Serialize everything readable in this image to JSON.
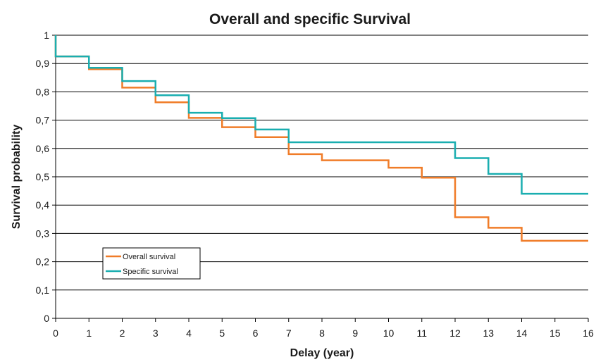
{
  "chart_data": {
    "type": "line",
    "step": true,
    "title": "Overall and specific Survival",
    "xlabel": "Delay (year)",
    "ylabel": "Survival probability",
    "xlim": [
      0,
      16
    ],
    "ylim": [
      0,
      1
    ],
    "x_ticks": [
      "0",
      "1",
      "2",
      "3",
      "4",
      "5",
      "6",
      "7",
      "8",
      "9",
      "10",
      "11",
      "12",
      "13",
      "14",
      "15",
      "16"
    ],
    "y_ticks": [
      "0",
      "0,1",
      "0,2",
      "0,3",
      "0,4",
      "0,5",
      "0,6",
      "0,7",
      "0,8",
      "0,9",
      "1"
    ],
    "grid": "horizontal",
    "legend_position": "lower-left",
    "series": [
      {
        "name": "Overall survival",
        "color": "#f07c28",
        "x": [
          0,
          0,
          1,
          2,
          3,
          4,
          5,
          6,
          7,
          8,
          10,
          11,
          12,
          13,
          14,
          16
        ],
        "y": [
          1.0,
          0.925,
          0.88,
          0.815,
          0.763,
          0.708,
          0.675,
          0.64,
          0.58,
          0.558,
          0.532,
          0.497,
          0.357,
          0.32,
          0.274,
          0.274
        ]
      },
      {
        "name": "Specific survival",
        "color": "#1aaeb0",
        "x": [
          0,
          0,
          1,
          2,
          3,
          4,
          5,
          6,
          7,
          12,
          13,
          14,
          16
        ],
        "y": [
          1.0,
          0.925,
          0.885,
          0.838,
          0.788,
          0.726,
          0.707,
          0.667,
          0.622,
          0.566,
          0.51,
          0.44,
          0.44
        ]
      }
    ]
  }
}
